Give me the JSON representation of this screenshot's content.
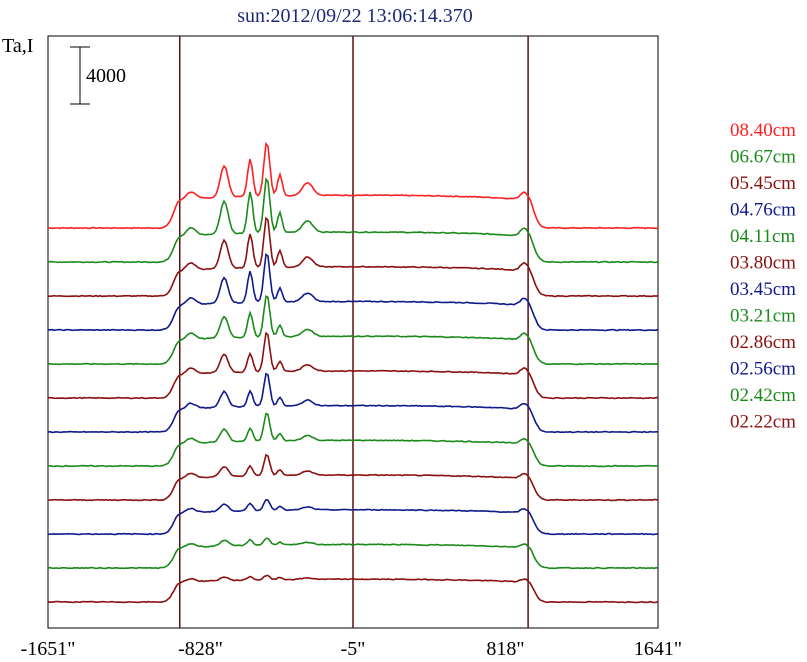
{
  "chart_data": {
    "type": "line",
    "title": "sun:2012/09/22 13:06:14.370",
    "ylabel": "Ta,I",
    "scale_bar_label": "4000",
    "scale_bar_value": 4000,
    "x_ticks": [
      {
        "value": -1651,
        "label": "-1651\""
      },
      {
        "value": -828,
        "label": "-828\""
      },
      {
        "value": -5,
        "label": "-5\""
      },
      {
        "value": 818,
        "label": "818\""
      },
      {
        "value": 1641,
        "label": "1641\""
      }
    ],
    "xlim": [
      -1651,
      1641
    ],
    "vertical_markers": [
      -940,
      -5,
      940
    ],
    "grid": false,
    "legend_position": "right",
    "series": [
      {
        "name": "08.40cm",
        "color": "#ff2020",
        "peaks": [
          3800,
          2600,
          2200,
          1500,
          900
        ],
        "limb": 500,
        "disk": 2300
      },
      {
        "name": "06.67cm",
        "color": "#1a8a1a",
        "peaks": [
          3900,
          2900,
          2300,
          1400,
          800
        ],
        "limb": 550,
        "disk": 2100
      },
      {
        "name": "05.45cm",
        "color": "#8b1010",
        "peaks": [
          3600,
          2400,
          2000,
          1200,
          700
        ],
        "limb": 520,
        "disk": 2050
      },
      {
        "name": "04.76cm",
        "color": "#101a8a",
        "peaks": [
          3500,
          2200,
          1800,
          1000,
          600
        ],
        "limb": 480,
        "disk": 2000
      },
      {
        "name": "04.11cm",
        "color": "#1a8a1a",
        "peaks": [
          3000,
          1700,
          1500,
          800,
          500
        ],
        "limb": 450,
        "disk": 1950
      },
      {
        "name": "03.80cm",
        "color": "#8b1010",
        "peaks": [
          2800,
          1300,
          1300,
          700,
          450
        ],
        "limb": 420,
        "disk": 1900
      },
      {
        "name": "03.45cm",
        "color": "#101a8a",
        "peaks": [
          2400,
          1100,
          1100,
          600,
          400
        ],
        "limb": 380,
        "disk": 1850
      },
      {
        "name": "03.21cm",
        "color": "#1a8a1a",
        "peaks": [
          2000,
          900,
          900,
          500,
          350
        ],
        "limb": 350,
        "disk": 1800
      },
      {
        "name": "02.86cm",
        "color": "#8b1010",
        "peaks": [
          1500,
          700,
          700,
          400,
          300
        ],
        "limb": 320,
        "disk": 1750
      },
      {
        "name": "02.56cm",
        "color": "#101a8a",
        "peaks": [
          800,
          500,
          500,
          300,
          200
        ],
        "limb": 280,
        "disk": 1700
      },
      {
        "name": "02.42cm",
        "color": "#1a8a1a",
        "peaks": [
          500,
          400,
          400,
          200,
          150
        ],
        "limb": 250,
        "disk": 1650
      },
      {
        "name": "02.22cm",
        "color": "#8b1010",
        "peaks": [
          300,
          250,
          250,
          150,
          100
        ],
        "limb": 220,
        "disk": 1600
      }
    ]
  }
}
